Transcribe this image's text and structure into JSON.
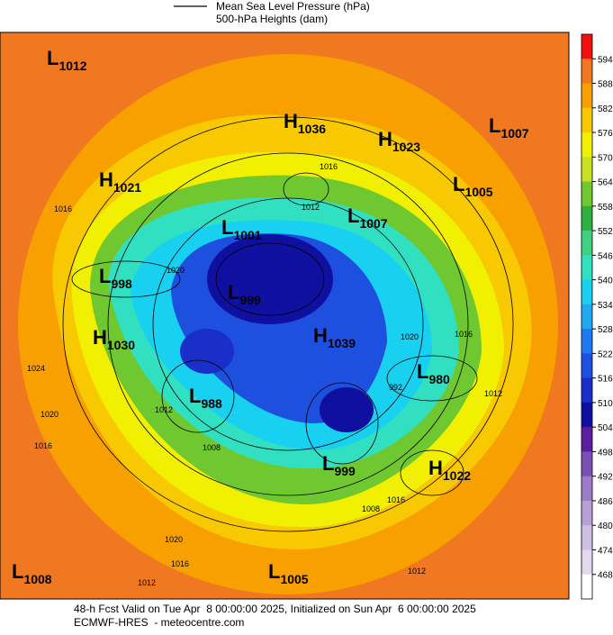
{
  "header": {
    "line_label": "Mean Sea Level Pressure (hPa)",
    "fill_label": "500-hPa Heights (dam)"
  },
  "pressure_centers": [
    {
      "type": "L",
      "value": 1012
    },
    {
      "type": "H",
      "value": 1036
    },
    {
      "type": "H",
      "value": 1023
    },
    {
      "type": "L",
      "value": 1007
    },
    {
      "type": "H",
      "value": 1021
    },
    {
      "type": "L",
      "value": 1005
    },
    {
      "type": "L",
      "value": 1001
    },
    {
      "type": "L",
      "value": 1007
    },
    {
      "type": "L",
      "value": 998
    },
    {
      "type": "L",
      "value": 999
    },
    {
      "type": "H",
      "value": 1030
    },
    {
      "type": "H",
      "value": 1039
    },
    {
      "type": "L",
      "value": 980
    },
    {
      "type": "L",
      "value": 988
    },
    {
      "type": "L",
      "value": 999
    },
    {
      "type": "H",
      "value": 1022
    },
    {
      "type": "L",
      "value": 1008
    },
    {
      "type": "L",
      "value": 1005
    }
  ],
  "isobar_labels": [
    1016,
    1020,
    1012,
    1016,
    1020,
    1016,
    992,
    1012,
    1012,
    1008,
    1016,
    1008,
    1020,
    1016,
    1012,
    1012,
    1020,
    1016,
    1024
  ],
  "colorbar": {
    "ticks": [
      594,
      588,
      582,
      576,
      570,
      564,
      558,
      552,
      546,
      540,
      534,
      528,
      522,
      516,
      510,
      504,
      498,
      492,
      486,
      480,
      474,
      468
    ],
    "colors": [
      "#f01010",
      "#f07820",
      "#f8a000",
      "#f8c800",
      "#f0f000",
      "#c8e020",
      "#70c830",
      "#30b040",
      "#40d080",
      "#30e0c0",
      "#18d0f0",
      "#20a8f0",
      "#2078f0",
      "#1e50e0",
      "#1a2ec8",
      "#1010a0",
      "#5a1e9e",
      "#7b4fb3",
      "#9b7cc6",
      "#b8a0d6",
      "#cfbfe3",
      "#e4d8ee",
      "#ffffff"
    ]
  },
  "footer": {
    "line1": "48-h Fcst Valid on Tue Apr  8 00:00:00 2025, Initialized on Sun Apr  6 00:00:00 2025",
    "line2": "ECMWF-HRES  - meteocentre.com"
  }
}
